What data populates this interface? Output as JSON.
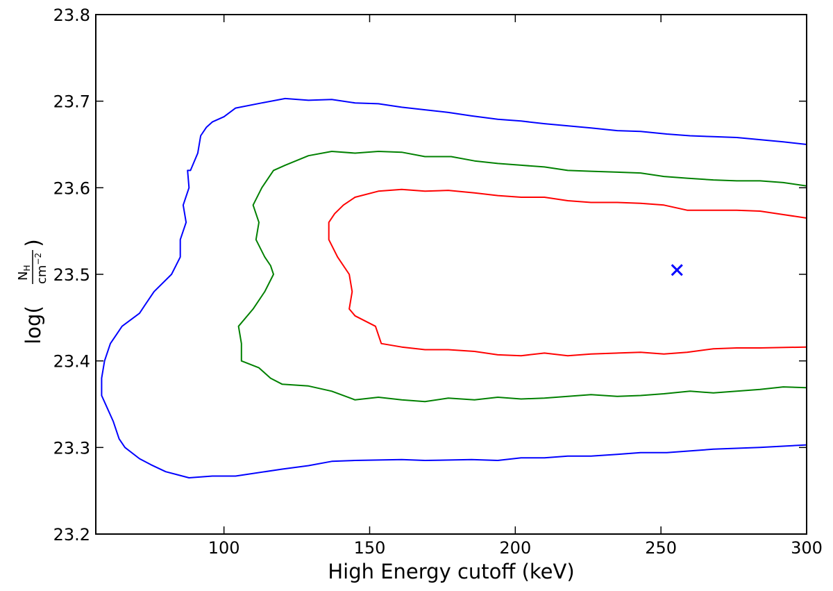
{
  "chart_data": {
    "type": "line",
    "xlabel": "High Energy cutoff (keV)",
    "ylabel": {
      "prefix": "log(",
      "numerator": "N",
      "numerator_sub": "H",
      "denominator": "cm",
      "denominator_sup": "−2",
      "suffix": ")"
    },
    "xlim": [
      56,
      300
    ],
    "ylim": [
      23.2,
      23.8
    ],
    "x_ticks": [
      100,
      150,
      200,
      250,
      300
    ],
    "y_ticks": [
      23.2,
      23.3,
      23.4,
      23.5,
      23.6,
      23.7,
      23.8
    ],
    "x_tick_labels": [
      "100",
      "150",
      "200",
      "250",
      "300"
    ],
    "y_tick_labels": [
      "23.2",
      "23.3",
      "23.4",
      "23.5",
      "23.6",
      "23.7",
      "23.8"
    ],
    "grid": false,
    "tick_direction": "in",
    "best_fit": {
      "x": 255.5,
      "y": 23.505,
      "marker": "x",
      "color": "#0000ff"
    },
    "series": [
      {
        "color": "#0000ff",
        "points": [
          [
            300,
            23.65
          ],
          [
            292,
            23.653
          ],
          [
            276,
            23.658
          ],
          [
            268,
            23.659
          ],
          [
            260,
            23.66
          ],
          [
            252,
            23.662
          ],
          [
            243,
            23.665
          ],
          [
            235,
            23.666
          ],
          [
            226,
            23.669
          ],
          [
            210,
            23.674
          ],
          [
            202,
            23.677
          ],
          [
            194,
            23.679
          ],
          [
            185,
            23.683
          ],
          [
            177,
            23.687
          ],
          [
            169,
            23.69
          ],
          [
            161,
            23.693
          ],
          [
            153,
            23.697
          ],
          [
            145,
            23.698
          ],
          [
            137,
            23.702
          ],
          [
            129,
            23.701
          ],
          [
            121,
            23.703
          ],
          [
            113,
            23.698
          ],
          [
            104,
            23.692
          ],
          [
            100,
            23.682
          ],
          [
            96,
            23.676
          ],
          [
            94,
            23.67
          ],
          [
            92,
            23.66
          ],
          [
            91,
            23.64
          ],
          [
            88.5,
            23.62
          ],
          [
            87.5,
            23.62
          ],
          [
            88,
            23.6
          ],
          [
            86,
            23.58
          ],
          [
            87,
            23.56
          ],
          [
            85,
            23.54
          ],
          [
            85,
            23.52
          ],
          [
            82,
            23.5
          ],
          [
            76,
            23.48
          ],
          [
            73,
            23.465
          ],
          [
            71,
            23.455
          ],
          [
            65,
            23.44
          ],
          [
            63,
            23.43
          ],
          [
            61,
            23.42
          ],
          [
            59,
            23.4
          ],
          [
            58,
            23.38
          ],
          [
            58,
            23.36
          ],
          [
            60,
            23.345
          ],
          [
            62,
            23.33
          ],
          [
            64,
            23.31
          ],
          [
            66,
            23.3
          ],
          [
            71,
            23.287
          ],
          [
            75,
            23.28
          ],
          [
            80,
            23.272
          ],
          [
            88,
            23.265
          ],
          [
            96,
            23.267
          ],
          [
            104,
            23.267
          ],
          [
            120,
            23.275
          ],
          [
            129,
            23.279
          ],
          [
            137,
            23.284
          ],
          [
            145,
            23.285
          ],
          [
            161,
            23.286
          ],
          [
            169,
            23.285
          ],
          [
            185,
            23.286
          ],
          [
            194,
            23.285
          ],
          [
            202,
            23.288
          ],
          [
            210,
            23.288
          ],
          [
            218,
            23.29
          ],
          [
            226,
            23.29
          ],
          [
            235,
            23.292
          ],
          [
            243,
            23.294
          ],
          [
            252,
            23.294
          ],
          [
            268,
            23.298
          ],
          [
            284,
            23.3
          ],
          [
            300,
            23.303
          ]
        ]
      },
      {
        "color": "#008000",
        "points": [
          [
            300,
            23.602
          ],
          [
            292,
            23.606
          ],
          [
            284,
            23.608
          ],
          [
            276,
            23.608
          ],
          [
            268,
            23.609
          ],
          [
            259,
            23.611
          ],
          [
            251,
            23.613
          ],
          [
            243,
            23.617
          ],
          [
            235,
            23.618
          ],
          [
            226,
            23.619
          ],
          [
            218,
            23.62
          ],
          [
            210,
            23.624
          ],
          [
            202,
            23.626
          ],
          [
            194,
            23.628
          ],
          [
            186,
            23.631
          ],
          [
            178,
            23.636
          ],
          [
            169,
            23.636
          ],
          [
            161,
            23.641
          ],
          [
            153,
            23.642
          ],
          [
            145,
            23.64
          ],
          [
            137,
            23.642
          ],
          [
            129,
            23.637
          ],
          [
            121,
            23.626
          ],
          [
            117,
            23.62
          ],
          [
            113,
            23.6
          ],
          [
            110,
            23.58
          ],
          [
            112,
            23.56
          ],
          [
            111,
            23.54
          ],
          [
            114,
            23.52
          ],
          [
            116,
            23.51
          ],
          [
            117,
            23.5
          ],
          [
            114,
            23.48
          ],
          [
            110,
            23.46
          ],
          [
            105,
            23.44
          ],
          [
            106,
            23.42
          ],
          [
            106,
            23.4
          ],
          [
            112,
            23.392
          ],
          [
            116,
            23.38
          ],
          [
            120,
            23.373
          ],
          [
            129,
            23.371
          ],
          [
            137,
            23.365
          ],
          [
            145,
            23.355
          ],
          [
            153,
            23.358
          ],
          [
            161,
            23.355
          ],
          [
            169,
            23.353
          ],
          [
            177,
            23.357
          ],
          [
            186,
            23.355
          ],
          [
            194,
            23.358
          ],
          [
            202,
            23.356
          ],
          [
            210,
            23.357
          ],
          [
            218,
            23.359
          ],
          [
            226,
            23.361
          ],
          [
            235,
            23.359
          ],
          [
            243,
            23.36
          ],
          [
            251,
            23.362
          ],
          [
            260,
            23.365
          ],
          [
            268,
            23.363
          ],
          [
            276,
            23.365
          ],
          [
            284,
            23.367
          ],
          [
            292,
            23.37
          ],
          [
            300,
            23.369
          ]
        ]
      },
      {
        "color": "#ff0000",
        "points": [
          [
            300,
            23.565
          ],
          [
            292,
            23.569
          ],
          [
            284,
            23.573
          ],
          [
            276,
            23.574
          ],
          [
            268,
            23.574
          ],
          [
            259,
            23.574
          ],
          [
            251,
            23.58
          ],
          [
            243,
            23.582
          ],
          [
            235,
            23.583
          ],
          [
            226,
            23.583
          ],
          [
            218,
            23.585
          ],
          [
            210,
            23.589
          ],
          [
            202,
            23.589
          ],
          [
            194,
            23.591
          ],
          [
            186,
            23.594
          ],
          [
            177,
            23.597
          ],
          [
            169,
            23.596
          ],
          [
            161,
            23.598
          ],
          [
            153,
            23.596
          ],
          [
            145,
            23.589
          ],
          [
            141,
            23.58
          ],
          [
            138,
            23.57
          ],
          [
            136,
            23.56
          ],
          [
            136,
            23.54
          ],
          [
            139,
            23.52
          ],
          [
            143,
            23.5
          ],
          [
            144,
            23.48
          ],
          [
            143,
            23.46
          ],
          [
            145,
            23.452
          ],
          [
            152,
            23.44
          ],
          [
            154,
            23.42
          ],
          [
            161,
            23.416
          ],
          [
            169,
            23.413
          ],
          [
            177,
            23.413
          ],
          [
            186,
            23.411
          ],
          [
            194,
            23.407
          ],
          [
            202,
            23.406
          ],
          [
            210,
            23.409
          ],
          [
            218,
            23.406
          ],
          [
            226,
            23.408
          ],
          [
            243,
            23.41
          ],
          [
            251,
            23.408
          ],
          [
            259,
            23.41
          ],
          [
            268,
            23.414
          ],
          [
            276,
            23.415
          ],
          [
            284,
            23.415
          ],
          [
            300,
            23.416
          ]
        ]
      }
    ]
  }
}
